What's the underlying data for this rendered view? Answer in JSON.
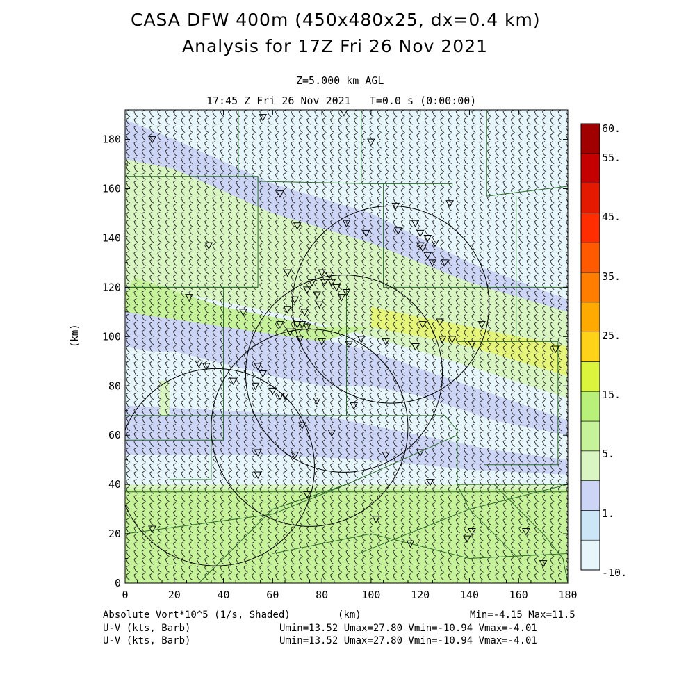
{
  "title_line1": "CASA DFW 400m (450x480x25, dx=0.4 km)",
  "title_line2": "Analysis for 17Z Fri 26 Nov 2021",
  "level_label": "Z=5.000 km AGL",
  "time_label": "17:45 Z Fri 26 Nov 2021   T=0.0 s (0:00:00)",
  "x_axis_label": "(km)",
  "y_axis_label": "(km)",
  "x_ticks": [
    "0",
    "20",
    "40",
    "60",
    "80",
    "100",
    "120",
    "140",
    "160",
    "180"
  ],
  "y_ticks": [
    "0",
    "20",
    "40",
    "60",
    "80",
    "100",
    "120",
    "140",
    "160",
    "180"
  ],
  "colorbar_labels": [
    "60.",
    "55.",
    "45.",
    "35.",
    "25.",
    "15.",
    "5.",
    "1.",
    "-10."
  ],
  "colorbar_colors": [
    "#e6f6fb",
    "#cde6f7",
    "#ccd5f5",
    "#d9f5c2",
    "#c6f29a",
    "#b8f07a",
    "#daf53c",
    "#ffd21a",
    "#ffaa00",
    "#ff7e00",
    "#ff5a00",
    "#ff2d00",
    "#e31a00",
    "#c40000",
    "#a00000"
  ],
  "field_label": "Absolute Vort*10^5 (1/s, Shaded)",
  "field_stats": "Min=-4.15 Max=11.5",
  "vector_label_1": "U-V (kts, Barb)",
  "vector_stats_1": "Umin=13.52 Umax=27.80 Vmin=-10.94 Vmax=-4.01",
  "vector_label_2": "U-V (kts, Barb)",
  "vector_stats_2": "Umin=13.52 Umax=27.80 Vmin=-10.94 Vmax=-4.01",
  "map_data": {
    "x_range_km": [
      0,
      180
    ],
    "y_range_km": [
      0,
      192
    ],
    "radar_rings": [
      {
        "center": [
          37,
          47
        ],
        "radius": 40
      },
      {
        "center": [
          75,
          63
        ],
        "radius": 40
      },
      {
        "center": [
          89,
          85
        ],
        "radius": 40
      },
      {
        "center": [
          108,
          113
        ],
        "radius": 40
      }
    ],
    "stations": [
      [
        11,
        180
      ],
      [
        56,
        189
      ],
      [
        89,
        191
      ],
      [
        100,
        179
      ],
      [
        63,
        158
      ],
      [
        70,
        145
      ],
      [
        90,
        146
      ],
      [
        98,
        142
      ],
      [
        34,
        137
      ],
      [
        110,
        153
      ],
      [
        118,
        146
      ],
      [
        111,
        143
      ],
      [
        120,
        142
      ],
      [
        123,
        140
      ],
      [
        126,
        138
      ],
      [
        132,
        154
      ],
      [
        120,
        137
      ],
      [
        121,
        136
      ],
      [
        123,
        133
      ],
      [
        125,
        130
      ],
      [
        130,
        130
      ],
      [
        66,
        126
      ],
      [
        80,
        126
      ],
      [
        83,
        125
      ],
      [
        76,
        122
      ],
      [
        81,
        122
      ],
      [
        84,
        122
      ],
      [
        90,
        118
      ],
      [
        86,
        120
      ],
      [
        74,
        119
      ],
      [
        78,
        117
      ],
      [
        88,
        116
      ],
      [
        69,
        115
      ],
      [
        79,
        113
      ],
      [
        73,
        110
      ],
      [
        66,
        111
      ],
      [
        26,
        116
      ],
      [
        48,
        110
      ],
      [
        72,
        105
      ],
      [
        70,
        105
      ],
      [
        74,
        104
      ],
      [
        63,
        105
      ],
      [
        67,
        102
      ],
      [
        71,
        99
      ],
      [
        80,
        98
      ],
      [
        91,
        97
      ],
      [
        96,
        99
      ],
      [
        106,
        98
      ],
      [
        118,
        96
      ],
      [
        121,
        105
      ],
      [
        128,
        106
      ],
      [
        129,
        99
      ],
      [
        133,
        99
      ],
      [
        141,
        97
      ],
      [
        145,
        105
      ],
      [
        175,
        95
      ],
      [
        30,
        89
      ],
      [
        33,
        88
      ],
      [
        54,
        88
      ],
      [
        56,
        85
      ],
      [
        44,
        82
      ],
      [
        53,
        80
      ],
      [
        60,
        78
      ],
      [
        63,
        76
      ],
      [
        65,
        76
      ],
      [
        78,
        74
      ],
      [
        93,
        72
      ],
      [
        72,
        64
      ],
      [
        84,
        61
      ],
      [
        54,
        53
      ],
      [
        69,
        52
      ],
      [
        106,
        52
      ],
      [
        120,
        53
      ],
      [
        124,
        41
      ],
      [
        54,
        44
      ],
      [
        74,
        36
      ],
      [
        102,
        26
      ],
      [
        11,
        22
      ],
      [
        116,
        16
      ],
      [
        139,
        18
      ],
      [
        141,
        21
      ],
      [
        163,
        21
      ],
      [
        170,
        8
      ]
    ]
  }
}
